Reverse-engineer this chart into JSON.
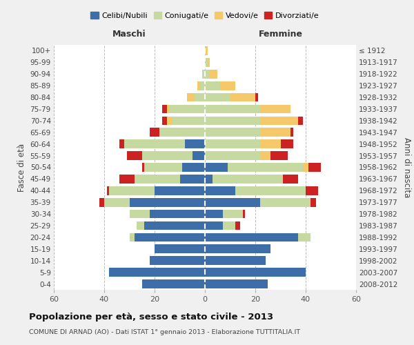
{
  "age_groups": [
    "0-4",
    "5-9",
    "10-14",
    "15-19",
    "20-24",
    "25-29",
    "30-34",
    "35-39",
    "40-44",
    "45-49",
    "50-54",
    "55-59",
    "60-64",
    "65-69",
    "70-74",
    "75-79",
    "80-84",
    "85-89",
    "90-94",
    "95-99",
    "100+"
  ],
  "birth_years": [
    "2008-2012",
    "2003-2007",
    "1998-2002",
    "1993-1997",
    "1988-1992",
    "1983-1987",
    "1978-1982",
    "1973-1977",
    "1968-1972",
    "1963-1967",
    "1958-1962",
    "1953-1957",
    "1948-1952",
    "1943-1947",
    "1938-1942",
    "1933-1937",
    "1928-1932",
    "1923-1927",
    "1918-1922",
    "1913-1917",
    "≤ 1912"
  ],
  "colors": {
    "celibe": "#3d6ea8",
    "coniugato": "#c5d9a0",
    "vedovo": "#f5c96a",
    "divorziato": "#cc2222"
  },
  "maschi": {
    "celibe": [
      25,
      38,
      22,
      20,
      28,
      24,
      22,
      30,
      20,
      10,
      9,
      5,
      8,
      0,
      0,
      0,
      0,
      0,
      0,
      0,
      0
    ],
    "coniugato": [
      0,
      0,
      0,
      0,
      2,
      3,
      8,
      10,
      18,
      18,
      15,
      20,
      24,
      18,
      13,
      14,
      4,
      2,
      1,
      0,
      0
    ],
    "vedovo": [
      0,
      0,
      0,
      0,
      0,
      0,
      0,
      0,
      0,
      0,
      0,
      0,
      0,
      0,
      2,
      1,
      3,
      1,
      0,
      0,
      0
    ],
    "divorziato": [
      0,
      0,
      0,
      0,
      0,
      0,
      0,
      2,
      1,
      6,
      1,
      6,
      2,
      4,
      2,
      2,
      0,
      0,
      0,
      0,
      0
    ]
  },
  "femmine": {
    "celibe": [
      25,
      40,
      24,
      26,
      37,
      7,
      7,
      22,
      12,
      3,
      9,
      0,
      0,
      0,
      0,
      0,
      0,
      0,
      0,
      0,
      0
    ],
    "coniugato": [
      0,
      0,
      0,
      0,
      5,
      5,
      8,
      20,
      28,
      28,
      30,
      22,
      22,
      22,
      22,
      22,
      10,
      6,
      2,
      1,
      0
    ],
    "vedovo": [
      0,
      0,
      0,
      0,
      0,
      0,
      0,
      0,
      0,
      0,
      2,
      4,
      8,
      12,
      15,
      12,
      10,
      6,
      3,
      1,
      1
    ],
    "divorziato": [
      0,
      0,
      0,
      0,
      0,
      2,
      1,
      2,
      5,
      6,
      5,
      7,
      5,
      1,
      2,
      0,
      1,
      0,
      0,
      0,
      0
    ]
  },
  "xlim": 60,
  "title": "Popolazione per età, sesso e stato civile - 2013",
  "subtitle": "COMUNE DI ARNAD (AO) - Dati ISTAT 1° gennaio 2013 - Elaborazione TUTTITALIA.IT",
  "ylabel_left": "Fasce di età",
  "ylabel_right": "Anni di nascita",
  "xlabel_left": "Maschi",
  "xlabel_right": "Femmine",
  "legend_labels": [
    "Celibi/Nubili",
    "Coniugati/e",
    "Vedovi/e",
    "Divorziati/e"
  ],
  "bg_color": "#f0f0f0",
  "plot_bg": "#ffffff"
}
